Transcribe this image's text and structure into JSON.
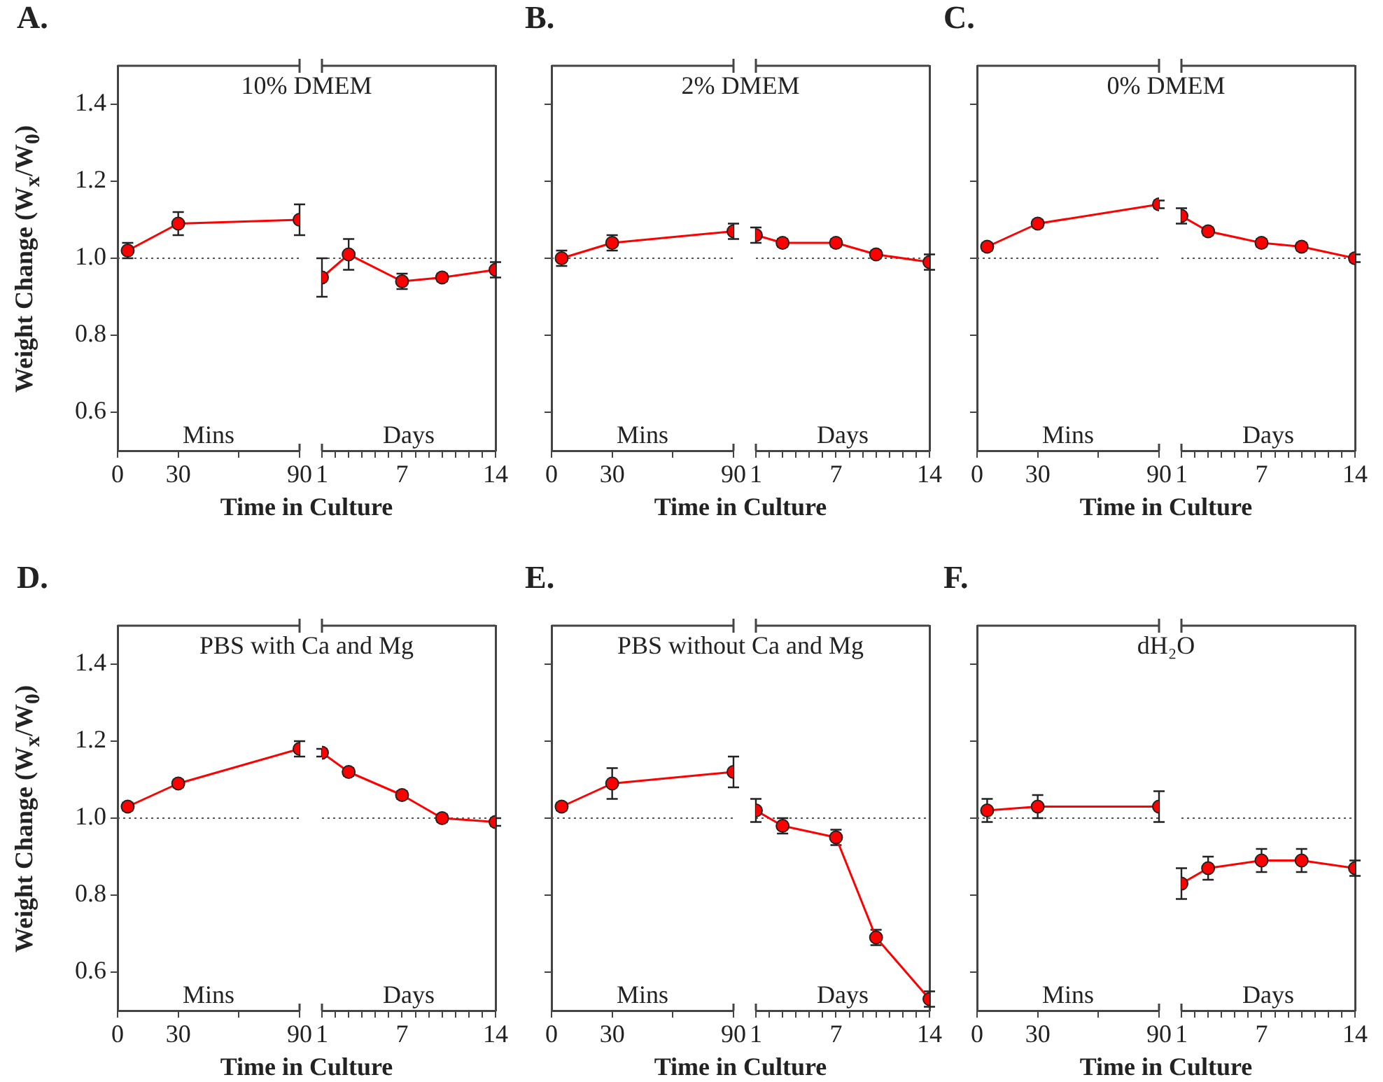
{
  "chart_data": [
    {
      "type": "line",
      "title": "A.",
      "subtitle": "10% DMEM",
      "xlabel": "Time in Culture",
      "ylabel": "Weight Change (W$_{x}$/W$_{0}$)",
      "annotations": [
        "Mins"
      ],
      "x": [
        5,
        30,
        90
      ],
      "xlim": [
        0,
        90
      ],
      "xticks": [
        0,
        30,
        {
          "value": 60,
          "label": null
        },
        90
      ],
      "ylim": [
        0.5,
        1.5
      ],
      "yticks": [
        {
          "value": 0.6,
          "label": "0.6"
        },
        {
          "value": 0.8,
          "label": "0.8"
        },
        {
          "value": 1.0,
          "label": "1.0"
        },
        {
          "value": 1.2,
          "label": "1.2"
        },
        {
          "value": 1.4,
          "label": "1.4"
        }
      ],
      "marker": "circle",
      "ref_lines": [
        {
          "axis": "y",
          "value": 1.0,
          "color": "#555555",
          "line_style": "dotted"
        }
      ],
      "series": [
        {
          "color": "#ff0000",
          "values": [
            1.02,
            1.09,
            1.1
          ],
          "errors": [
            0.02,
            0.03,
            0.04
          ]
        }
      ]
    },
    {
      "type": "line",
      "annotations": [
        "Days"
      ],
      "x": [
        1,
        3,
        7,
        10,
        14
      ],
      "xlim": [
        1,
        14
      ],
      "xticks": [
        1,
        {
          "value": 2,
          "label": null
        },
        {
          "value": 3,
          "label": null
        },
        {
          "value": 4,
          "label": null
        },
        {
          "value": 5,
          "label": null
        },
        {
          "value": 6,
          "label": null
        },
        7,
        {
          "value": 8,
          "label": null
        },
        {
          "value": 9,
          "label": null
        },
        {
          "value": 10,
          "label": null
        },
        {
          "value": 11,
          "label": null
        },
        {
          "value": 12,
          "label": null
        },
        {
          "value": 13,
          "label": null
        },
        14
      ],
      "ylim": [
        0.5,
        1.5
      ],
      "tick_labels": "x",
      "marker": "circle",
      "ref_lines": [
        {
          "axis": "y",
          "value": 1.0,
          "color": "#555555",
          "line_style": "dotted"
        }
      ],
      "series": [
        {
          "color": "#ff0000",
          "values": [
            0.95,
            1.01,
            0.94,
            0.95,
            0.97
          ],
          "errors": [
            0.05,
            0.04,
            0.02,
            0.01,
            0.02
          ]
        }
      ]
    },
    {
      "type": "line",
      "title": "B.",
      "subtitle": "2% DMEM",
      "xlabel": "Time in Culture",
      "annotations": [
        "Mins"
      ],
      "x": [
        5,
        30,
        90
      ],
      "xlim": [
        0,
        90
      ],
      "xticks": [
        0,
        30,
        {
          "value": 60,
          "label": null
        },
        90
      ],
      "ylim": [
        0.5,
        1.5
      ],
      "yticks": [
        0.6,
        0.8,
        1.0,
        1.2,
        1.4
      ],
      "tick_labels": "x",
      "marker": "circle",
      "ref_lines": [
        {
          "axis": "y",
          "value": 1.0,
          "color": "#555555",
          "line_style": "dotted"
        }
      ],
      "series": [
        {
          "color": "#ff0000",
          "values": [
            1.0,
            1.04,
            1.07
          ],
          "errors": [
            0.02,
            0.02,
            0.02
          ]
        }
      ]
    },
    {
      "type": "line",
      "annotations": [
        "Days"
      ],
      "x": [
        1,
        3,
        7,
        10,
        14
      ],
      "xlim": [
        1,
        14
      ],
      "xticks": [
        1,
        {
          "value": 2,
          "label": null
        },
        {
          "value": 3,
          "label": null
        },
        {
          "value": 4,
          "label": null
        },
        {
          "value": 5,
          "label": null
        },
        {
          "value": 6,
          "label": null
        },
        7,
        {
          "value": 8,
          "label": null
        },
        {
          "value": 9,
          "label": null
        },
        {
          "value": 10,
          "label": null
        },
        {
          "value": 11,
          "label": null
        },
        {
          "value": 12,
          "label": null
        },
        {
          "value": 13,
          "label": null
        },
        14
      ],
      "ylim": [
        0.5,
        1.5
      ],
      "tick_labels": "x",
      "marker": "circle",
      "ref_lines": [
        {
          "axis": "y",
          "value": 1.0,
          "color": "#555555",
          "line_style": "dotted"
        }
      ],
      "series": [
        {
          "color": "#ff0000",
          "values": [
            1.06,
            1.04,
            1.04,
            1.01,
            0.99
          ],
          "errors": [
            0.02,
            0.01,
            0.01,
            0.01,
            0.02
          ]
        }
      ]
    },
    {
      "type": "line",
      "title": "C.",
      "subtitle": "0% DMEM",
      "xlabel": "Time in Culture",
      "annotations": [
        "Mins"
      ],
      "x": [
        5,
        30,
        90
      ],
      "xlim": [
        0,
        90
      ],
      "xticks": [
        0,
        30,
        {
          "value": 60,
          "label": null
        },
        90
      ],
      "ylim": [
        0.5,
        1.5
      ],
      "yticks": [
        0.6,
        0.8,
        1.0,
        1.2,
        1.4
      ],
      "tick_labels": "x",
      "marker": "circle",
      "ref_lines": [
        {
          "axis": "y",
          "value": 1.0,
          "color": "#555555",
          "line_style": "dotted"
        }
      ],
      "series": [
        {
          "color": "#ff0000",
          "values": [
            1.03,
            1.09,
            1.14
          ],
          "errors": [
            0.01,
            0.01,
            0.01
          ]
        }
      ]
    },
    {
      "type": "line",
      "annotations": [
        "Days"
      ],
      "x": [
        1,
        3,
        7,
        10,
        14
      ],
      "xlim": [
        1,
        14
      ],
      "xticks": [
        1,
        {
          "value": 2,
          "label": null
        },
        {
          "value": 3,
          "label": null
        },
        {
          "value": 4,
          "label": null
        },
        {
          "value": 5,
          "label": null
        },
        {
          "value": 6,
          "label": null
        },
        7,
        {
          "value": 8,
          "label": null
        },
        {
          "value": 9,
          "label": null
        },
        {
          "value": 10,
          "label": null
        },
        {
          "value": 11,
          "label": null
        },
        {
          "value": 12,
          "label": null
        },
        {
          "value": 13,
          "label": null
        },
        14
      ],
      "ylim": [
        0.5,
        1.5
      ],
      "tick_labels": "x",
      "marker": "circle",
      "ref_lines": [
        {
          "axis": "y",
          "value": 1.0,
          "color": "#555555",
          "line_style": "dotted"
        }
      ],
      "series": [
        {
          "color": "#ff0000",
          "values": [
            1.11,
            1.07,
            1.04,
            1.03,
            1.0
          ],
          "errors": [
            0.02,
            0.01,
            0.01,
            0.01,
            0.01
          ]
        }
      ]
    },
    {
      "type": "line",
      "title": "D.",
      "subtitle": "PBS with Ca and Mg",
      "xlabel": "Time in Culture",
      "ylabel": "Weight Change (W$_{x}$/W$_{0}$)",
      "annotations": [
        "Mins"
      ],
      "x": [
        5,
        30,
        90
      ],
      "xlim": [
        0,
        90
      ],
      "xticks": [
        0,
        30,
        {
          "value": 60,
          "label": null
        },
        90
      ],
      "ylim": [
        0.5,
        1.5
      ],
      "yticks": [
        {
          "value": 0.6,
          "label": "0.6"
        },
        {
          "value": 0.8,
          "label": "0.8"
        },
        {
          "value": 1.0,
          "label": "1.0"
        },
        {
          "value": 1.2,
          "label": "1.2"
        },
        {
          "value": 1.4,
          "label": "1.4"
        }
      ],
      "marker": "circle",
      "ref_lines": [
        {
          "axis": "y",
          "value": 1.0,
          "color": "#555555",
          "line_style": "dotted"
        }
      ],
      "series": [
        {
          "color": "#ff0000",
          "values": [
            1.03,
            1.09,
            1.18
          ],
          "errors": [
            0.01,
            0.01,
            0.02
          ]
        }
      ]
    },
    {
      "type": "line",
      "annotations": [
        "Days"
      ],
      "x": [
        1,
        3,
        7,
        10,
        14
      ],
      "xlim": [
        1,
        14
      ],
      "xticks": [
        1,
        {
          "value": 2,
          "label": null
        },
        {
          "value": 3,
          "label": null
        },
        {
          "value": 4,
          "label": null
        },
        {
          "value": 5,
          "label": null
        },
        {
          "value": 6,
          "label": null
        },
        7,
        {
          "value": 8,
          "label": null
        },
        {
          "value": 9,
          "label": null
        },
        {
          "value": 10,
          "label": null
        },
        {
          "value": 11,
          "label": null
        },
        {
          "value": 12,
          "label": null
        },
        {
          "value": 13,
          "label": null
        },
        14
      ],
      "ylim": [
        0.5,
        1.5
      ],
      "tick_labels": "x",
      "marker": "circle",
      "ref_lines": [
        {
          "axis": "y",
          "value": 1.0,
          "color": "#555555",
          "line_style": "dotted"
        }
      ],
      "series": [
        {
          "color": "#ff0000",
          "values": [
            1.17,
            1.12,
            1.06,
            1.0,
            0.99
          ],
          "errors": [
            0.01,
            0.01,
            0.01,
            0.01,
            0.01
          ]
        }
      ]
    },
    {
      "type": "line",
      "title": "E.",
      "subtitle": "PBS without Ca and Mg",
      "xlabel": "Time in Culture",
      "annotations": [
        "Mins"
      ],
      "x": [
        5,
        30,
        90
      ],
      "xlim": [
        0,
        90
      ],
      "xticks": [
        0,
        30,
        {
          "value": 60,
          "label": null
        },
        90
      ],
      "ylim": [
        0.5,
        1.5
      ],
      "yticks": [
        0.6,
        0.8,
        1.0,
        1.2,
        1.4
      ],
      "tick_labels": "x",
      "marker": "circle",
      "ref_lines": [
        {
          "axis": "y",
          "value": 1.0,
          "color": "#555555",
          "line_style": "dotted"
        }
      ],
      "series": [
        {
          "color": "#ff0000",
          "values": [
            1.03,
            1.09,
            1.12
          ],
          "errors": [
            0.01,
            0.04,
            0.04
          ]
        }
      ]
    },
    {
      "type": "line",
      "annotations": [
        "Days"
      ],
      "x": [
        1,
        3,
        7,
        10,
        14
      ],
      "xlim": [
        1,
        14
      ],
      "xticks": [
        1,
        {
          "value": 2,
          "label": null
        },
        {
          "value": 3,
          "label": null
        },
        {
          "value": 4,
          "label": null
        },
        {
          "value": 5,
          "label": null
        },
        {
          "value": 6,
          "label": null
        },
        7,
        {
          "value": 8,
          "label": null
        },
        {
          "value": 9,
          "label": null
        },
        {
          "value": 10,
          "label": null
        },
        {
          "value": 11,
          "label": null
        },
        {
          "value": 12,
          "label": null
        },
        {
          "value": 13,
          "label": null
        },
        14
      ],
      "ylim": [
        0.5,
        1.5
      ],
      "tick_labels": "x",
      "marker": "circle",
      "ref_lines": [
        {
          "axis": "y",
          "value": 1.0,
          "color": "#555555",
          "line_style": "dotted"
        }
      ],
      "series": [
        {
          "color": "#ff0000",
          "values": [
            1.02,
            0.98,
            0.95,
            0.69,
            0.53
          ],
          "errors": [
            0.03,
            0.02,
            0.02,
            0.02,
            0.02
          ]
        }
      ]
    },
    {
      "type": "line",
      "title": "F.",
      "subtitle": "dH₂O",
      "xlabel": "Time in Culture",
      "annotations": [
        "Mins"
      ],
      "x": [
        5,
        30,
        90
      ],
      "xlim": [
        0,
        90
      ],
      "xticks": [
        0,
        30,
        {
          "value": 60,
          "label": null
        },
        90
      ],
      "ylim": [
        0.5,
        1.5
      ],
      "yticks": [
        0.6,
        0.8,
        1.0,
        1.2,
        1.4
      ],
      "tick_labels": "x",
      "marker": "circle",
      "ref_lines": [
        {
          "axis": "y",
          "value": 1.0,
          "color": "#555555",
          "line_style": "dotted"
        }
      ],
      "series": [
        {
          "color": "#ff0000",
          "values": [
            1.02,
            1.03,
            1.03
          ],
          "errors": [
            0.03,
            0.03,
            0.04
          ]
        }
      ]
    },
    {
      "type": "line",
      "annotations": [
        "Days"
      ],
      "x": [
        1,
        3,
        7,
        10,
        14
      ],
      "xlim": [
        1,
        14
      ],
      "xticks": [
        1,
        {
          "value": 2,
          "label": null
        },
        {
          "value": 3,
          "label": null
        },
        {
          "value": 4,
          "label": null
        },
        {
          "value": 5,
          "label": null
        },
        {
          "value": 6,
          "label": null
        },
        7,
        {
          "value": 8,
          "label": null
        },
        {
          "value": 9,
          "label": null
        },
        {
          "value": 10,
          "label": null
        },
        {
          "value": 11,
          "label": null
        },
        {
          "value": 12,
          "label": null
        },
        {
          "value": 13,
          "label": null
        },
        14
      ],
      "ylim": [
        0.5,
        1.5
      ],
      "tick_labels": "x",
      "marker": "circle",
      "ref_lines": [
        {
          "axis": "y",
          "value": 1.0,
          "color": "#555555",
          "line_style": "dotted"
        }
      ],
      "series": [
        {
          "color": "#ff0000",
          "values": [
            0.83,
            0.87,
            0.89,
            0.89,
            0.87
          ],
          "errors": [
            0.04,
            0.03,
            0.03,
            0.03,
            0.02
          ]
        }
      ]
    }
  ]
}
